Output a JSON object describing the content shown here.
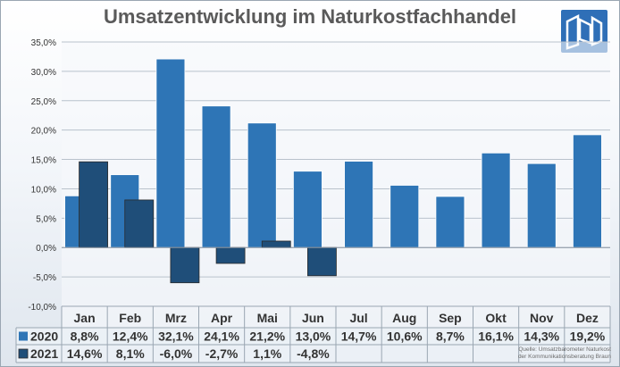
{
  "chart_data": {
    "type": "bar",
    "title": "Umsatzentwicklung im Naturkostfachhandel",
    "categories": [
      "Jan",
      "Feb",
      "Mrz",
      "Apr",
      "Mai",
      "Jun",
      "Jul",
      "Aug",
      "Sep",
      "Okt",
      "Nov",
      "Dez"
    ],
    "series": [
      {
        "name": "2020",
        "color": "#2e75b6",
        "values": [
          8.8,
          12.4,
          32.1,
          24.1,
          21.2,
          13.0,
          14.7,
          10.6,
          8.7,
          16.1,
          14.3,
          19.2
        ],
        "labels": [
          "8,8%",
          "12,4%",
          "32,1%",
          "24,1%",
          "21,2%",
          "13,0%",
          "14,7%",
          "10,6%",
          "8,7%",
          "16,1%",
          "14,3%",
          "19,2%"
        ]
      },
      {
        "name": "2021",
        "color": "#1f4e79",
        "values": [
          14.6,
          8.1,
          -6.0,
          -2.7,
          1.1,
          -4.8,
          null,
          null,
          null,
          null,
          null,
          null
        ],
        "labels": [
          "14,6%",
          "8,1%",
          "-6,0%",
          "-2,7%",
          "1,1%",
          "-4,8%",
          "",
          "",
          "",
          "",
          "",
          ""
        ]
      }
    ],
    "ylim": [
      -10,
      35
    ],
    "yticks": [
      -10,
      -5,
      0,
      5,
      10,
      15,
      20,
      25,
      30,
      35
    ],
    "ytick_labels": [
      "-10,0%",
      "-5,0%",
      "0,0%",
      "5,0%",
      "10,0%",
      "15,0%",
      "20,0%",
      "25,0%",
      "30,0%",
      "35,0%"
    ],
    "grid": true,
    "data_table": true
  },
  "footer": {
    "source_line1": "Quelle: Umsatzbarometer Naturkost",
    "source_line2": "der Kommunikationsberatung Braun"
  },
  "logo": {
    "name": "company-logo"
  }
}
